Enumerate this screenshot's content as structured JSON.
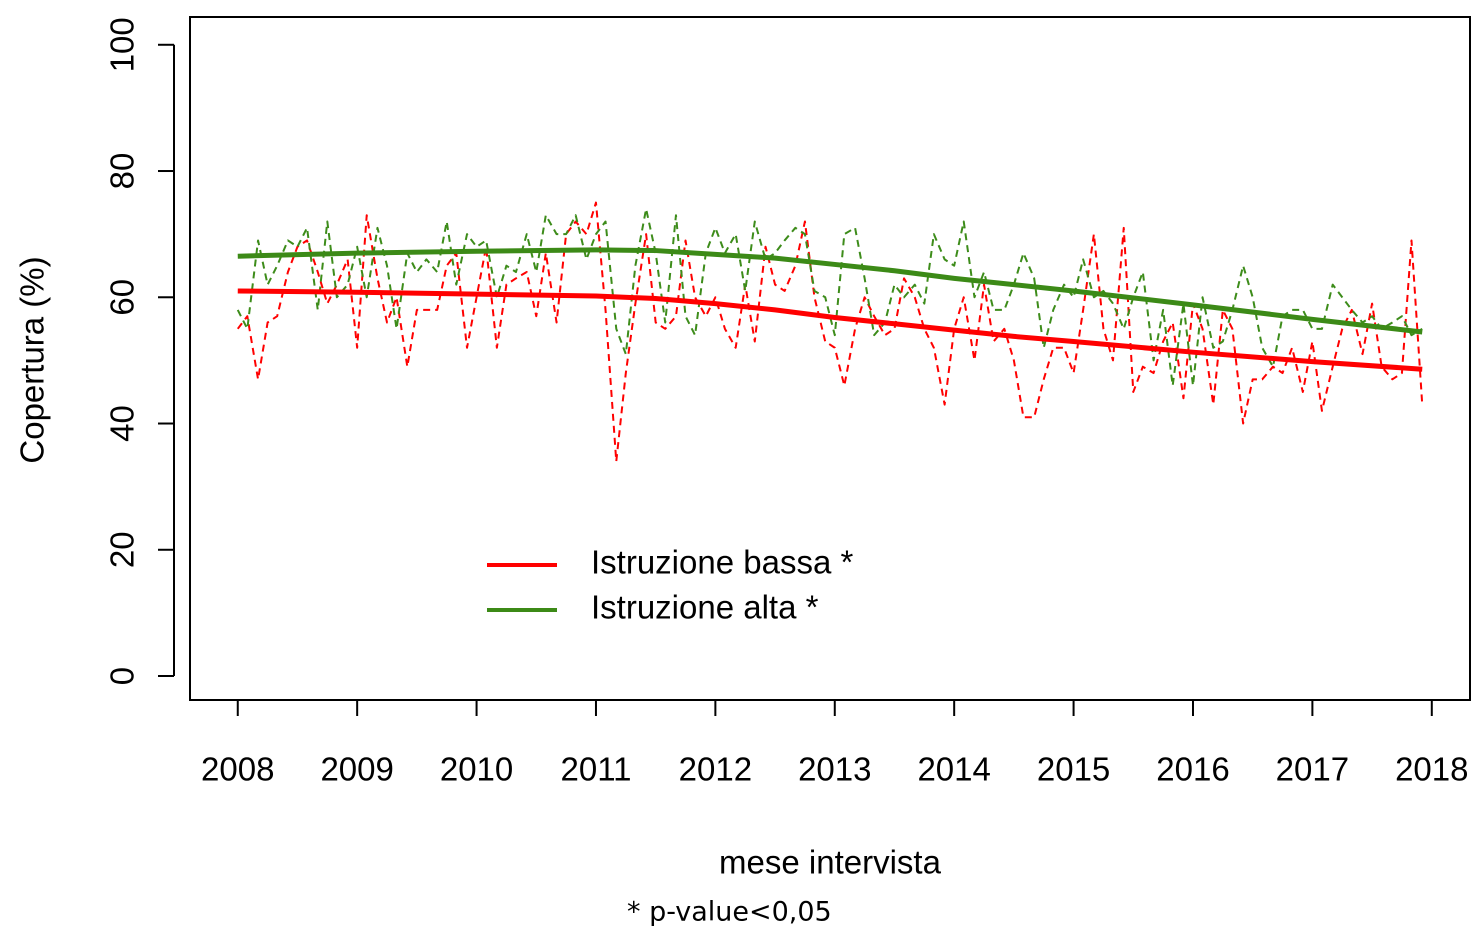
{
  "chart_data": {
    "type": "line",
    "y_label": "Copertura (%)",
    "x_label": "mese intervista",
    "footnote": "* p-value<0,05",
    "xlim": [
      2007.6,
      2018.32
    ],
    "ylim": [
      -3.8,
      104.4
    ],
    "xticks": [
      2008,
      2009,
      2010,
      2011,
      2012,
      2013,
      2014,
      2015,
      2016,
      2017,
      2018
    ],
    "yticks": [
      0,
      20,
      40,
      60,
      80,
      100
    ],
    "x": [
      2008,
      2008.08,
      2008.17,
      2008.25,
      2008.33,
      2008.42,
      2008.5,
      2008.58,
      2008.67,
      2008.75,
      2008.83,
      2008.92,
      2009,
      2009.08,
      2009.17,
      2009.25,
      2009.33,
      2009.42,
      2009.5,
      2009.58,
      2009.67,
      2009.75,
      2009.83,
      2009.92,
      2010,
      2010.08,
      2010.17,
      2010.25,
      2010.33,
      2010.42,
      2010.5,
      2010.58,
      2010.67,
      2010.75,
      2010.83,
      2010.92,
      2011,
      2011.08,
      2011.17,
      2011.25,
      2011.33,
      2011.42,
      2011.5,
      2011.58,
      2011.67,
      2011.75,
      2011.83,
      2011.92,
      2012,
      2012.08,
      2012.17,
      2012.25,
      2012.33,
      2012.42,
      2012.5,
      2012.58,
      2012.67,
      2012.75,
      2012.83,
      2012.92,
      2013,
      2013.08,
      2013.17,
      2013.25,
      2013.33,
      2013.42,
      2013.5,
      2013.58,
      2013.67,
      2013.75,
      2013.83,
      2013.92,
      2014,
      2014.08,
      2014.17,
      2014.25,
      2014.33,
      2014.42,
      2014.5,
      2014.58,
      2014.67,
      2014.75,
      2014.83,
      2014.92,
      2015,
      2015.08,
      2015.17,
      2015.25,
      2015.33,
      2015.42,
      2015.5,
      2015.58,
      2015.67,
      2015.75,
      2015.83,
      2015.92,
      2016,
      2016.08,
      2016.17,
      2016.25,
      2016.33,
      2016.42,
      2016.5,
      2016.58,
      2016.67,
      2016.75,
      2016.83,
      2016.92,
      2017,
      2017.08,
      2017.17,
      2017.25,
      2017.33,
      2017.42,
      2017.5,
      2017.58,
      2017.67,
      2017.75,
      2017.83,
      2017.92
    ],
    "series": [
      {
        "color": "#ff0000",
        "dash": true,
        "values": [
          55,
          57,
          47,
          56,
          57,
          64,
          68,
          69,
          64,
          59,
          62,
          66,
          52,
          73,
          63,
          56,
          60,
          49,
          58,
          58,
          58,
          65,
          67,
          52,
          60,
          68,
          52,
          62,
          63,
          64,
          57,
          67,
          56,
          70,
          72,
          70,
          75,
          58,
          34,
          48,
          59,
          70,
          56,
          55,
          57,
          69,
          60,
          57,
          60,
          55,
          52,
          62,
          53,
          68,
          62,
          61,
          65,
          72,
          60,
          53,
          52,
          46,
          55,
          60,
          57,
          54,
          55,
          63,
          60,
          55,
          52,
          43,
          55,
          60,
          50,
          62,
          53,
          55,
          50,
          41,
          41,
          47,
          52,
          52,
          48,
          58,
          70,
          55,
          50,
          71,
          45,
          49,
          48,
          53,
          56,
          44,
          59,
          55,
          43,
          58,
          55,
          40,
          47,
          47,
          49,
          48,
          52,
          45,
          53,
          42,
          49,
          55,
          58,
          51,
          59,
          49,
          47,
          48,
          69,
          43
        ]
      },
      {
        "color": "#3d8c1a",
        "dash": true,
        "values": [
          58,
          55,
          69,
          62,
          65,
          69,
          68,
          71,
          58,
          72,
          60,
          62,
          68,
          60,
          71,
          65,
          55,
          67,
          64,
          66,
          64,
          72,
          62,
          70,
          68,
          69,
          60,
          65,
          64,
          70,
          64,
          73,
          70,
          70,
          73,
          66,
          70,
          72,
          55,
          51,
          65,
          74,
          67,
          56,
          73,
          57,
          54,
          67,
          71,
          67,
          70,
          61,
          72,
          66,
          67,
          69,
          71,
          70,
          61,
          60,
          54,
          70,
          71,
          63,
          54,
          56,
          62,
          60,
          62,
          59,
          70,
          66,
          65,
          72,
          60,
          64,
          58,
          58,
          62,
          67,
          63,
          52,
          58,
          62,
          60,
          66,
          60,
          61,
          59,
          55,
          60,
          64,
          50,
          58,
          46,
          59,
          46,
          60,
          52,
          53,
          58,
          65,
          60,
          52,
          49,
          57,
          58,
          58,
          55,
          55,
          62,
          60,
          58,
          56,
          57,
          55,
          56,
          57,
          54,
          55
        ]
      },
      {
        "name": "Istruzione bassa *",
        "color": "#ff0000",
        "x": [
          2008,
          2009,
          2010,
          2011,
          2011.5,
          2012,
          2012.5,
          2013,
          2013.5,
          2014,
          2014.5,
          2015,
          2016,
          2017,
          2017.92
        ],
        "values": [
          61,
          60.8,
          60.5,
          60.2,
          59.8,
          59,
          58,
          56.8,
          55.8,
          54.8,
          53.8,
          53,
          51.3,
          49.8,
          48.6
        ]
      },
      {
        "name": "Istruzione alta *",
        "color": "#3c8a17",
        "x": [
          2008,
          2009,
          2010,
          2011,
          2011.5,
          2012,
          2012.5,
          2013,
          2013.5,
          2014,
          2014.5,
          2015,
          2016,
          2017,
          2017.92
        ],
        "values": [
          66.5,
          67,
          67.3,
          67.5,
          67.4,
          66.8,
          66.2,
          65.2,
          64.2,
          63,
          62,
          61,
          58.8,
          56.5,
          54.5
        ]
      }
    ]
  }
}
